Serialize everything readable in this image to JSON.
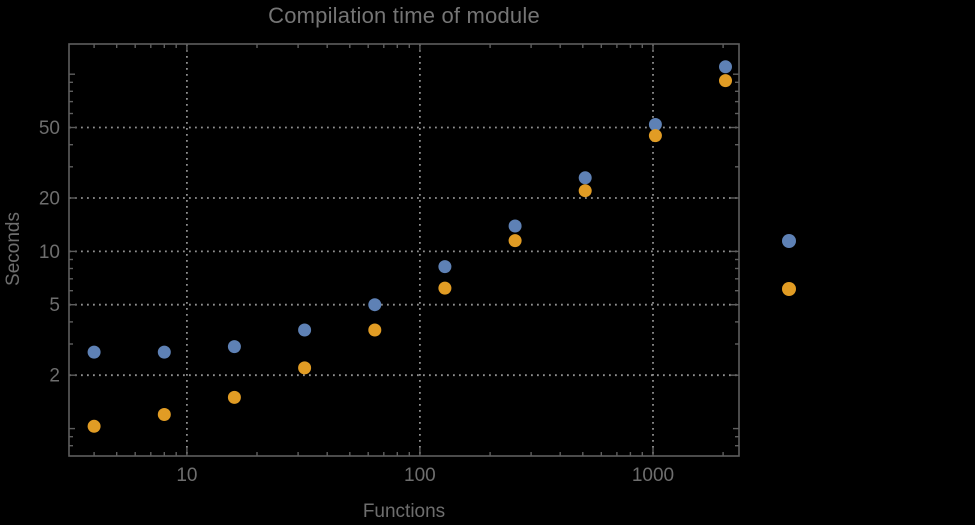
{
  "title": "Compilation time of module",
  "background_color": "#000000",
  "frame_color": "#5e5e5e",
  "grid_color": "#8f8f8f",
  "label_color": "#6e6e6e",
  "chart_data": {
    "type": "scatter",
    "title": "Compilation time of module",
    "xlabel": "Functions",
    "ylabel": "Seconds",
    "x_scale": "log",
    "y_scale": "log",
    "xlim": [
      3.12,
      2340
    ],
    "ylim": [
      0.7,
      148
    ],
    "grid": true,
    "x": [
      4,
      8,
      16,
      32,
      64,
      128,
      256,
      512,
      1024,
      2048
    ],
    "series": [
      {
        "name": "series-blue",
        "color": "#5E81B5",
        "values": [
          2.7,
          2.7,
          2.9,
          3.6,
          5.0,
          8.2,
          13.9,
          26,
          52,
          110
        ]
      },
      {
        "name": "series-orange",
        "color": "#E19C24",
        "values": [
          1.03,
          1.2,
          1.5,
          2.2,
          3.6,
          6.2,
          11.5,
          22,
          45,
          92
        ]
      }
    ],
    "x_ticks_labeled": [
      10,
      100,
      1000
    ],
    "x_ticks_minor": [
      4,
      5,
      6,
      7,
      8,
      9,
      20,
      30,
      40,
      50,
      60,
      70,
      80,
      90,
      200,
      300,
      400,
      500,
      600,
      700,
      800,
      900,
      2000
    ],
    "y_ticks_labeled": [
      2,
      5,
      10,
      20,
      50
    ],
    "y_ticks_medium": [
      1,
      100
    ],
    "y_ticks_minor": [
      0.8,
      0.9,
      3,
      4,
      6,
      7,
      8,
      9,
      30,
      40,
      60,
      70,
      80,
      90
    ],
    "legend_position": "right",
    "legend_markers": [
      {
        "name": "legend-marker-blue",
        "color": "#5E81B5"
      },
      {
        "name": "legend-marker-orange",
        "color": "#E19C24"
      }
    ]
  }
}
